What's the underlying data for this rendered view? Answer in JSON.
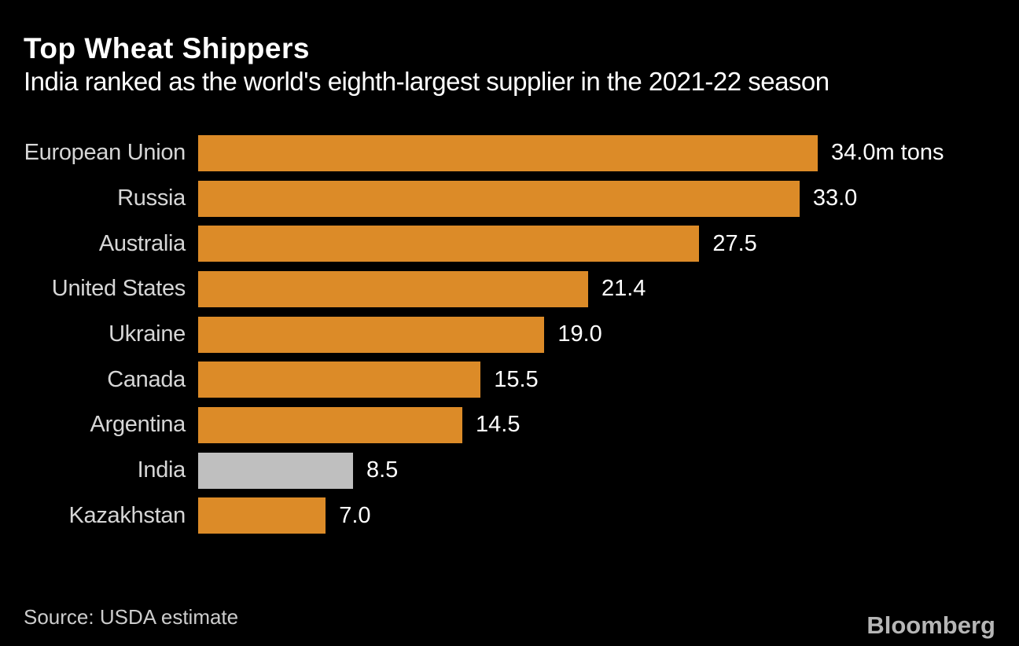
{
  "chart_data": {
    "type": "bar",
    "orientation": "horizontal",
    "title": "Top Wheat Shippers",
    "subtitle": "India ranked as the world's eighth-largest supplier in the 2021-22 season",
    "unit": "m tons",
    "categories": [
      "European Union",
      "Russia",
      "Australia",
      "United States",
      "Ukraine",
      "Canada",
      "Argentina",
      "India",
      "Kazakhstan"
    ],
    "values": [
      34.0,
      33.0,
      27.5,
      21.4,
      19.0,
      15.5,
      14.5,
      8.5,
      7.0
    ],
    "value_labels": [
      "34.0m tons",
      "33.0",
      "27.5",
      "21.4",
      "19.0",
      "15.5",
      "14.5",
      "8.5",
      "7.0"
    ],
    "highlighted_category": "India",
    "xlim": [
      0,
      34.0
    ],
    "grid": false,
    "legend": false,
    "source": "Source: USDA estimate",
    "brand": "Bloomberg",
    "colors": {
      "background": "#000000",
      "bar": "#DC8B28",
      "highlight_bar": "#BFBFBF",
      "title_text": "#FFFFFF",
      "category_text": "#D6D6D6",
      "value_text": "#FFFFFF",
      "source_text": "#CCCCCC",
      "brand_text": "#B6B6B6"
    }
  }
}
